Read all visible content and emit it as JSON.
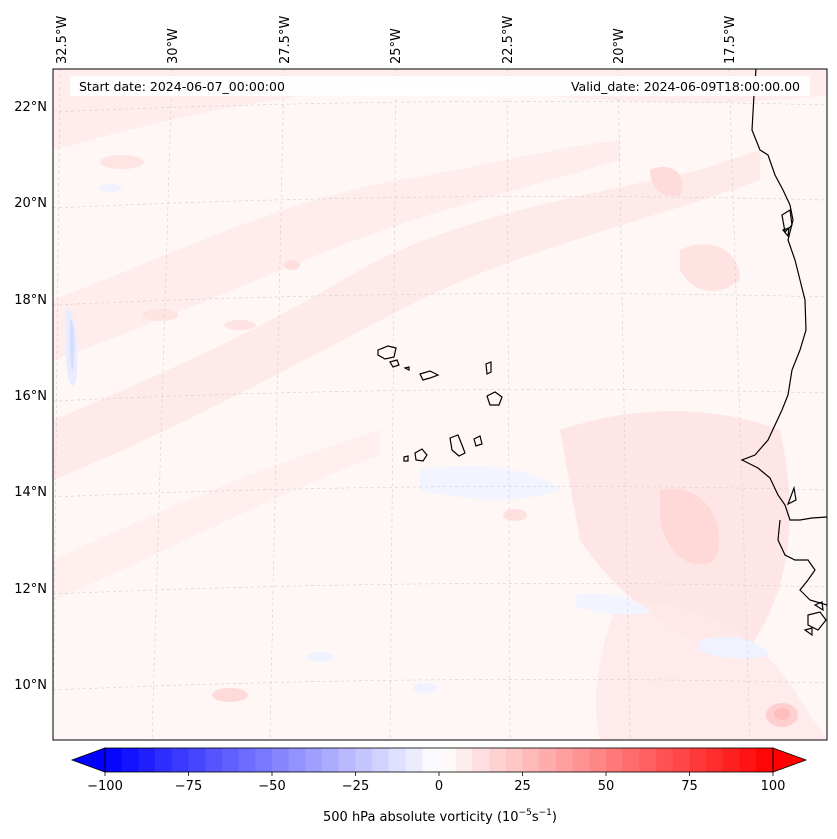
{
  "map": {
    "header": {
      "start_date": "Start date: 2024-06-07_00:00:00",
      "valid_date": "Valid_date: 2024-06-09T18:00:00.00"
    },
    "lon_labels": [
      "32.5°W",
      "30°W",
      "27.5°W",
      "25°W",
      "22.5°W",
      "20°W",
      "17.5°W"
    ],
    "lat_labels": [
      "22°N",
      "20°N",
      "18°N",
      "16°N",
      "14°N",
      "12°N",
      "10°N"
    ],
    "field": "500 hPa absolute vorticity",
    "region": "Cape Verde Islands and West African coast"
  },
  "colorbar": {
    "label": "500 hPa absolute vorticity (10",
    "label_exp1": "−5",
    "label_mid": "s",
    "label_exp2": "−1",
    "label_close": ")",
    "ticks": [
      "−100",
      "−75",
      "−50",
      "−25",
      "0",
      "25",
      "50",
      "75",
      "100"
    ],
    "colormap": "bwr",
    "range": [
      -100,
      100
    ],
    "levels": 41
  },
  "colors": {
    "background_field": "#fff5f5",
    "weak_positive": "#ffe6e6",
    "weak_negative": "#f2f4ff",
    "coastline": "#000000",
    "gridline": "#c8c8c8"
  }
}
